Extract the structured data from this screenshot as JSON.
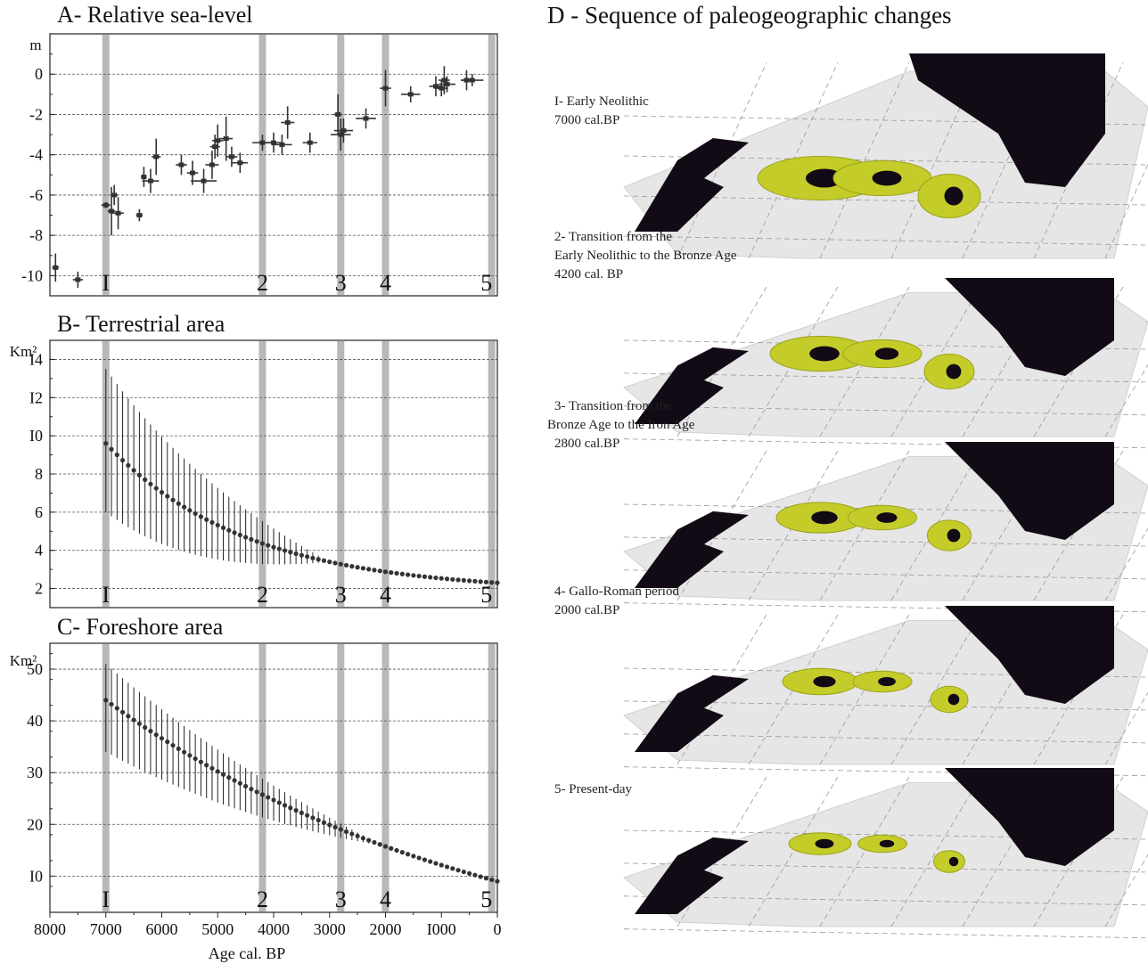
{
  "chart_data": [
    {
      "id": "A",
      "type": "scatter",
      "title": "A- Relative sea-level",
      "ylabel": "m",
      "xlim": [
        8000,
        0
      ],
      "ylim": [
        -11,
        2
      ],
      "yticks": [
        0,
        -2,
        -4,
        -6,
        -8,
        -10
      ],
      "ytick_labels": [
        "0",
        "-2",
        "-4",
        "-6",
        "-8",
        "-10"
      ],
      "grid": true,
      "phase_lines": [
        7000,
        4200,
        2800,
        2000,
        100
      ],
      "phase_labels": [
        "I",
        "2",
        "3",
        "4",
        "5"
      ],
      "points": [
        {
          "x": 7900,
          "y": -9.6,
          "ex": 60,
          "ey": 0.7
        },
        {
          "x": 7500,
          "y": -10.2,
          "ex": 90,
          "ey": 0.4
        },
        {
          "x": 7000,
          "y": -6.5,
          "ex": 80,
          "ey": 0.15
        },
        {
          "x": 6900,
          "y": -6.8,
          "ex": 70,
          "ey": 1.2
        },
        {
          "x": 6850,
          "y": -6.0,
          "ex": 60,
          "ey": 0.5
        },
        {
          "x": 6780,
          "y": -6.9,
          "ex": 100,
          "ey": 0.8
        },
        {
          "x": 6400,
          "y": -7.0,
          "ex": 60,
          "ey": 0.3
        },
        {
          "x": 6320,
          "y": -5.1,
          "ex": 50,
          "ey": 0.5
        },
        {
          "x": 6200,
          "y": -5.3,
          "ex": 150,
          "ey": 0.6
        },
        {
          "x": 6100,
          "y": -4.1,
          "ex": 80,
          "ey": 0.9
        },
        {
          "x": 5650,
          "y": -4.5,
          "ex": 100,
          "ey": 0.5
        },
        {
          "x": 5450,
          "y": -4.9,
          "ex": 100,
          "ey": 0.6
        },
        {
          "x": 5250,
          "y": -5.3,
          "ex": 230,
          "ey": 0.6
        },
        {
          "x": 5100,
          "y": -4.5,
          "ex": 120,
          "ey": 0.7
        },
        {
          "x": 5050,
          "y": -3.6,
          "ex": 90,
          "ey": 0.6
        },
        {
          "x": 5000,
          "y": -3.3,
          "ex": 100,
          "ey": 0.8
        },
        {
          "x": 4850,
          "y": -3.2,
          "ex": 120,
          "ey": 1.1
        },
        {
          "x": 4750,
          "y": -4.1,
          "ex": 100,
          "ey": 0.5
        },
        {
          "x": 4600,
          "y": -4.4,
          "ex": 140,
          "ey": 0.5
        },
        {
          "x": 4200,
          "y": -3.4,
          "ex": 180,
          "ey": 0.4
        },
        {
          "x": 4000,
          "y": -3.4,
          "ex": 150,
          "ey": 0.5
        },
        {
          "x": 3850,
          "y": -3.5,
          "ex": 180,
          "ey": 0.5
        },
        {
          "x": 3750,
          "y": -2.4,
          "ex": 120,
          "ey": 0.8
        },
        {
          "x": 3350,
          "y": -3.4,
          "ex": 130,
          "ey": 0.5
        },
        {
          "x": 2850,
          "y": -2.0,
          "ex": 80,
          "ey": 1.0
        },
        {
          "x": 2800,
          "y": -3.0,
          "ex": 180,
          "ey": 0.8
        },
        {
          "x": 2750,
          "y": -2.8,
          "ex": 170,
          "ey": 0.6
        },
        {
          "x": 2350,
          "y": -2.2,
          "ex": 180,
          "ey": 0.5
        },
        {
          "x": 2000,
          "y": -0.7,
          "ex": 100,
          "ey": 0.9
        },
        {
          "x": 1550,
          "y": -1.0,
          "ex": 170,
          "ey": 0.4
        },
        {
          "x": 1100,
          "y": -0.6,
          "ex": 120,
          "ey": 0.5
        },
        {
          "x": 1000,
          "y": -0.7,
          "ex": 120,
          "ey": 0.4
        },
        {
          "x": 950,
          "y": -0.3,
          "ex": 100,
          "ey": 0.7
        },
        {
          "x": 900,
          "y": -0.5,
          "ex": 150,
          "ey": 0.4
        },
        {
          "x": 550,
          "y": -0.3,
          "ex": 100,
          "ey": 0.5
        },
        {
          "x": 450,
          "y": -0.3,
          "ex": 200,
          "ey": 0.3
        }
      ]
    },
    {
      "id": "B",
      "type": "scatter",
      "title": "B- Terrestrial area",
      "ylabel": "Km²",
      "xlim": [
        8000,
        0
      ],
      "ylim": [
        1,
        15
      ],
      "yticks": [
        2,
        4,
        6,
        8,
        10,
        12,
        14
      ],
      "ytick_labels": [
        "2",
        "4",
        "6",
        "8",
        "I0",
        "I2",
        "I4"
      ],
      "grid": true,
      "phase_lines": [
        7000,
        4200,
        2800,
        2000,
        100
      ],
      "phase_labels": [
        "I",
        "2",
        "3",
        "4",
        "5"
      ],
      "curve": {
        "from": 7000,
        "to": 0,
        "step": 100,
        "start": 9.6,
        "end": 2.3,
        "decay": 2500
      },
      "range": {
        "low_start": 6.0,
        "high_start": 13.5,
        "until": 3000
      }
    },
    {
      "id": "C",
      "type": "scatter",
      "title": "C- Foreshore area",
      "ylabel": "Km²",
      "xlim": [
        8000,
        0
      ],
      "xlabel": "Age cal. BP",
      "xticks": [
        8000,
        7000,
        6000,
        5000,
        4000,
        3000,
        2000,
        1000,
        0
      ],
      "xtick_labels": [
        "8000",
        "7000",
        "6000",
        "5000",
        "4000",
        "3000",
        "2000",
        "I000",
        "0"
      ],
      "ylim": [
        3,
        55
      ],
      "yticks": [
        10,
        20,
        30,
        40,
        50
      ],
      "ytick_labels": [
        "I0",
        "20",
        "30",
        "40",
        "50"
      ],
      "grid": true,
      "phase_lines": [
        7000,
        4200,
        2800,
        2000,
        100
      ],
      "phase_labels": [
        "I",
        "2",
        "3",
        "4",
        "5"
      ],
      "curve": {
        "from": 7000,
        "to": 0,
        "step": 100,
        "start": 44,
        "end": 9,
        "decay": 7000
      },
      "range": {
        "low_start": 34,
        "high_start": 51,
        "until": 2000
      }
    }
  ],
  "panel_d": {
    "title": "D - Sequence of paleogeographic changes",
    "stages": [
      {
        "line1": "I- Early Neolithic",
        "line2": "7000 cal.BP",
        "line3": ""
      },
      {
        "line1": "2- Transition from the",
        "line2": "Early Neolithic to the Bronze Age",
        "line3": "4200 cal. BP"
      },
      {
        "line1": "3- Transition from the",
        "line2": "Bronze Age to the Iron Age",
        "line3": "2800 cal.BP"
      },
      {
        "line1": "4- Gallo-Roman period",
        "line2": "2000 cal.BP",
        "line3": ""
      },
      {
        "line1": "5- Present-day",
        "line2": "",
        "line3": ""
      }
    ],
    "colors": {
      "land": "#c4cc2a",
      "sea": "#120a14",
      "terrain": "#e6e6e6"
    }
  },
  "colors": {
    "phase_line": "#b8b8b8",
    "marker": "#333333",
    "grid": "#555555"
  }
}
